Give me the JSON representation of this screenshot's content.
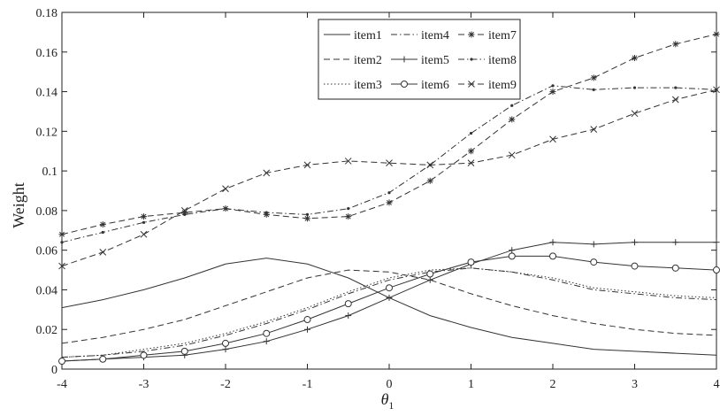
{
  "chart_data": {
    "type": "line",
    "xlabel": "θ",
    "xlabel_subscript": "1",
    "ylabel": "Weight",
    "xlim": [
      -4,
      4
    ],
    "ylim": [
      0,
      0.18
    ],
    "x_ticks": [
      -4,
      -3,
      -2,
      -1,
      0,
      1,
      2,
      3,
      4
    ],
    "y_ticks": [
      0,
      0.02,
      0.04,
      0.06,
      0.08,
      0.1,
      0.12,
      0.14,
      0.16,
      0.18
    ],
    "x_tick_labels": [
      "-4",
      "-3",
      "-2",
      "-1",
      "0",
      "1",
      "2",
      "3",
      "4"
    ],
    "y_tick_labels": [
      "0",
      "0.02",
      "0.04",
      "0.06",
      "0.08",
      "0.1",
      "0.12",
      "0.14",
      "0.16",
      "0.18"
    ],
    "grid": false,
    "legend_position": "top-center",
    "x": [
      -4,
      -3.5,
      -3,
      -2.5,
      -2,
      -1.5,
      -1,
      -0.5,
      0,
      0.5,
      1,
      1.5,
      2,
      2.5,
      3,
      3.5,
      4
    ],
    "series": [
      {
        "name": "item1",
        "style": "solid",
        "marker": "none",
        "values": [
          0.031,
          0.035,
          0.04,
          0.046,
          0.053,
          0.056,
          0.053,
          0.046,
          0.036,
          0.027,
          0.021,
          0.016,
          0.013,
          0.01,
          0.009,
          0.008,
          0.007
        ]
      },
      {
        "name": "item2",
        "style": "dashed",
        "marker": "none",
        "values": [
          0.013,
          0.016,
          0.02,
          0.025,
          0.032,
          0.039,
          0.046,
          0.05,
          0.049,
          0.045,
          0.038,
          0.032,
          0.027,
          0.023,
          0.02,
          0.018,
          0.017
        ]
      },
      {
        "name": "item3",
        "style": "dotted",
        "marker": "none",
        "values": [
          0.006,
          0.007,
          0.01,
          0.013,
          0.018,
          0.024,
          0.031,
          0.039,
          0.046,
          0.05,
          0.051,
          0.049,
          0.046,
          0.041,
          0.039,
          0.037,
          0.036
        ]
      },
      {
        "name": "item4",
        "style": "dashdot",
        "marker": "none",
        "values": [
          0.006,
          0.007,
          0.009,
          0.012,
          0.017,
          0.023,
          0.03,
          0.038,
          0.045,
          0.049,
          0.051,
          0.049,
          0.045,
          0.04,
          0.038,
          0.036,
          0.035
        ]
      },
      {
        "name": "item5",
        "style": "solid",
        "marker": "plus",
        "values": [
          0.004,
          0.005,
          0.006,
          0.007,
          0.01,
          0.014,
          0.02,
          0.027,
          0.036,
          0.045,
          0.053,
          0.06,
          0.064,
          0.063,
          0.064,
          0.064,
          0.064
        ]
      },
      {
        "name": "item6",
        "style": "solid",
        "marker": "circle",
        "values": [
          0.004,
          0.005,
          0.007,
          0.009,
          0.013,
          0.018,
          0.025,
          0.033,
          0.041,
          0.048,
          0.054,
          0.057,
          0.057,
          0.054,
          0.052,
          0.051,
          0.05
        ]
      },
      {
        "name": "item7",
        "style": "dashed",
        "marker": "star",
        "values": [
          0.068,
          0.073,
          0.077,
          0.079,
          0.081,
          0.078,
          0.076,
          0.077,
          0.084,
          0.095,
          0.11,
          0.126,
          0.14,
          0.147,
          0.157,
          0.164,
          0.169
        ]
      },
      {
        "name": "item8",
        "style": "dashdot",
        "marker": "point",
        "values": [
          0.064,
          0.069,
          0.074,
          0.078,
          0.081,
          0.079,
          0.078,
          0.081,
          0.089,
          0.103,
          0.119,
          0.133,
          0.143,
          0.141,
          0.142,
          0.142,
          0.141
        ]
      },
      {
        "name": "item9",
        "style": "dashed",
        "marker": "cross",
        "values": [
          0.052,
          0.059,
          0.068,
          0.08,
          0.091,
          0.099,
          0.103,
          0.105,
          0.104,
          0.103,
          0.104,
          0.108,
          0.116,
          0.121,
          0.129,
          0.136,
          0.141
        ]
      }
    ]
  }
}
